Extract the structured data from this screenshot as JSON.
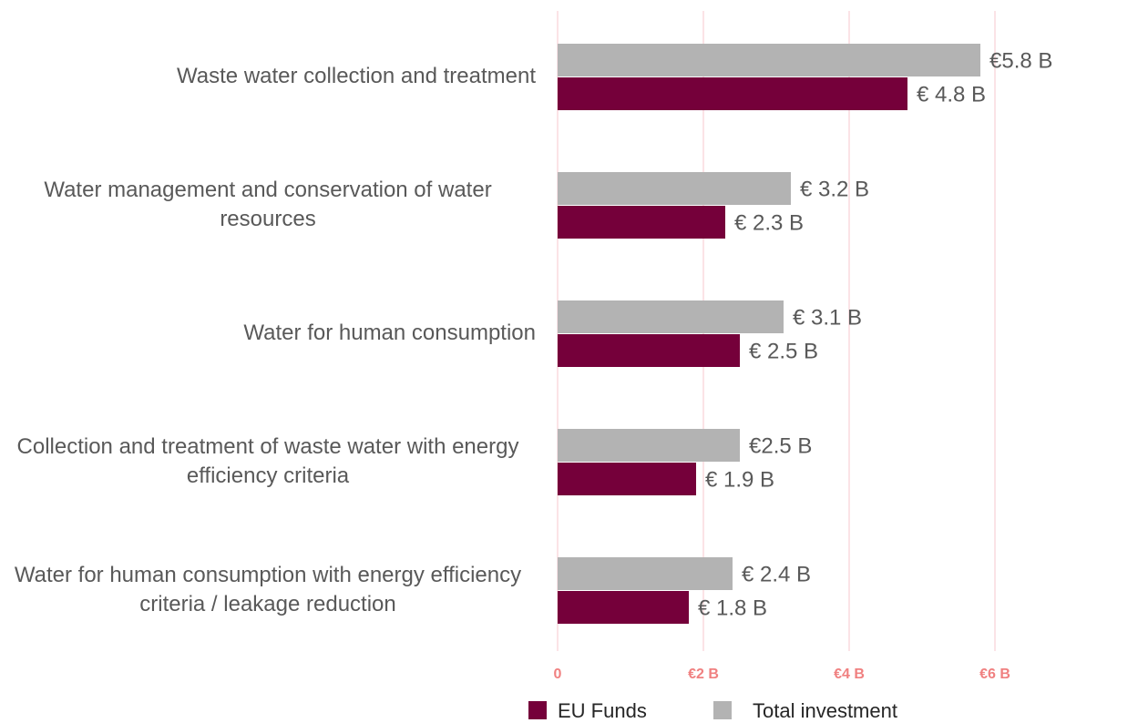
{
  "chart_data": {
    "type": "bar",
    "orientation": "horizontal",
    "categories": [
      "Waste water collection and treatment",
      "Water management and conservation of water resources",
      "Water for human consumption",
      "Collection and treatment of waste water with energy efficiency criteria",
      "Water for human consumption with energy efficiency criteria / leakage reduction"
    ],
    "series": [
      {
        "name": "EU Funds",
        "color": "#75003a",
        "values": [
          4.8,
          2.3,
          2.5,
          1.9,
          1.8
        ],
        "value_labels": [
          "€ 4.8 B",
          "€ 2.3 B",
          "€ 2.5 B",
          "€ 1.9 B",
          "€ 1.8 B"
        ]
      },
      {
        "name": "Total investment",
        "color": "#b3b3b3",
        "values": [
          5.8,
          3.2,
          3.1,
          2.5,
          2.4
        ],
        "value_labels": [
          "€5.8 B",
          "€ 3.2 B",
          "€ 3.1 B",
          "€2.5 B",
          "€ 2.4 B"
        ]
      }
    ],
    "xlim": [
      0,
      6
    ],
    "xticks": [
      0,
      {
        "value": 2,
        "label": "€2 B"
      },
      {
        "value": 4,
        "label": "€4 B"
      },
      {
        "value": 6,
        "label": "€6 B"
      }
    ],
    "grid": true
  }
}
